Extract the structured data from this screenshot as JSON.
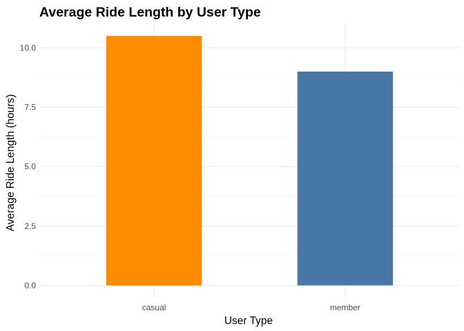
{
  "chart_data": {
    "type": "bar",
    "title": "Average Ride Length by User Type",
    "xlabel": "User Type",
    "ylabel": "Average Ride Length (hours)",
    "categories": [
      "casual",
      "member"
    ],
    "values": [
      10.5,
      9.0
    ],
    "colors": [
      "#ff8c00",
      "#4a78a6"
    ],
    "ylim": [
      -0.525,
      11.025
    ],
    "yticks": [
      0,
      2.5,
      5,
      7.5,
      10
    ],
    "ytick_labels": [
      "0.0",
      "2.5",
      "5.0",
      "7.5",
      "10.0"
    ],
    "grid": true,
    "legend": "none"
  }
}
